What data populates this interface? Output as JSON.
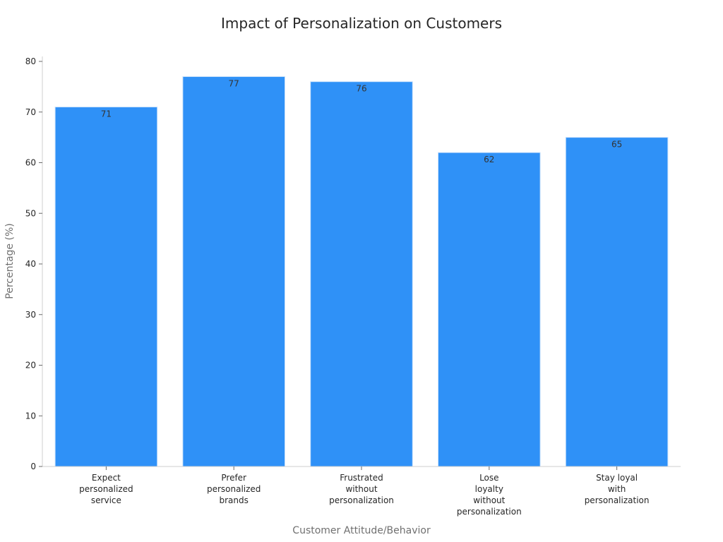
{
  "chart_data": {
    "type": "bar",
    "title": "Impact of Personalization on Customers",
    "xlabel": "Customer Attitude/Behavior",
    "ylabel": "Percentage (%)",
    "categories": [
      [
        "Expect",
        "personalized",
        "service"
      ],
      [
        "Prefer",
        "personalized",
        "brands"
      ],
      [
        "Frustrated",
        "without",
        "personalization"
      ],
      [
        "Lose",
        "loyalty",
        "without",
        "personalization"
      ],
      [
        "Stay loyal",
        "with",
        "personalization"
      ]
    ],
    "values": [
      71,
      77,
      76,
      62,
      65
    ],
    "ylim": [
      0,
      80
    ],
    "yticks": [
      0,
      10,
      20,
      30,
      40,
      50,
      60,
      70,
      80
    ],
    "grid": false,
    "legend": "none",
    "bar_color": "#2f91f7"
  }
}
